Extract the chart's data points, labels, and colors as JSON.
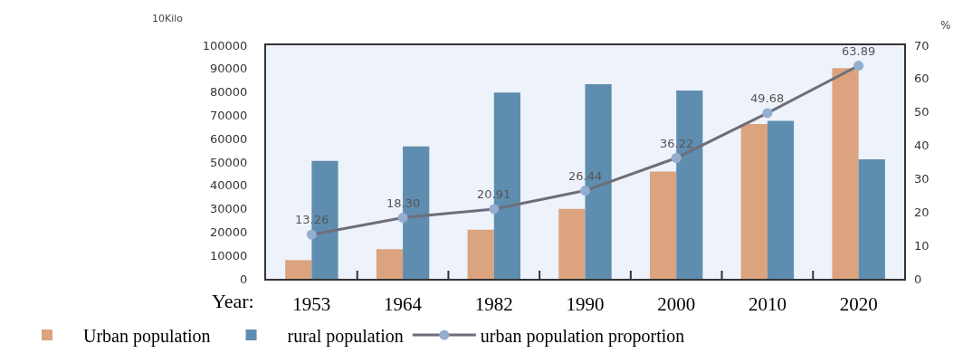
{
  "chart_data": {
    "type": "bar",
    "categories": [
      "1953",
      "1964",
      "1982",
      "1990",
      "2000",
      "2010",
      "2020"
    ],
    "xlabel": "Year:",
    "ylabel": "10Kilo",
    "y2label": "%",
    "series": [
      {
        "name": "Urban population",
        "color": "#dba37e",
        "values": [
          8000,
          12700,
          21000,
          29900,
          45900,
          66300,
          90200
        ]
      },
      {
        "name": "rural population",
        "color": "#5f8db0",
        "values": [
          50500,
          56700,
          79700,
          83300,
          80600,
          67600,
          51200
        ]
      },
      {
        "name": "urban population proportion",
        "type": "line",
        "axis": "y2",
        "color": "#6e6e78",
        "values": [
          13.26,
          18.3,
          20.91,
          26.44,
          36.22,
          49.68,
          63.89
        ],
        "value_labels": [
          "13.26",
          "18.30",
          "20.91",
          "26.44",
          "36.22",
          "49.68",
          "63.89"
        ]
      }
    ],
    "ylim": [
      0,
      100000
    ],
    "yticks": [
      0,
      10000,
      20000,
      30000,
      40000,
      50000,
      60000,
      70000,
      80000,
      90000,
      100000
    ],
    "y2lim": [
      0,
      70
    ],
    "y2ticks": [
      0,
      10,
      20,
      30,
      40,
      50,
      60,
      70
    ],
    "grid": false,
    "legend": "bottom",
    "marker": "circle",
    "line_style": "solid"
  }
}
